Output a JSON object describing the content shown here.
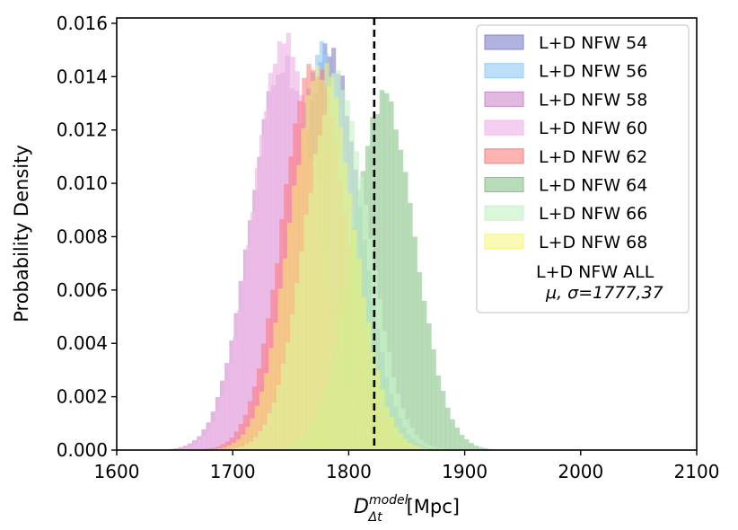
{
  "chart_data": {
    "type": "histogram",
    "title": "",
    "xlabel": {
      "main": "D",
      "sub": "Δt",
      "sup": "model",
      "unit": "[Mpc]"
    },
    "ylabel": "Probability Density",
    "xlim": [
      1600,
      2100
    ],
    "ylim": [
      0,
      0.0162
    ],
    "x_ticks": [
      "1600",
      "1700",
      "1800",
      "1900",
      "2000",
      "2100"
    ],
    "y_ticks": [
      "0.000",
      "0.002",
      "0.004",
      "0.006",
      "0.008",
      "0.010",
      "0.012",
      "0.014",
      "0.016"
    ],
    "reference_line": {
      "x": 1822,
      "style": "dashed",
      "color": "#000000"
    },
    "bins": 50,
    "legend_position": "top-right",
    "series": [
      {
        "name": "L+D NFW 54",
        "color": "#8888cc",
        "alpha": 0.65,
        "mean": 1783,
        "sigma": 27,
        "peak": 0.015,
        "range": [
          1690,
          1880
        ]
      },
      {
        "name": "L+D NFW 56",
        "color": "#99ccf5",
        "alpha": 0.65,
        "mean": 1776,
        "sigma": 27,
        "peak": 0.015,
        "range": [
          1685,
          1872
        ]
      },
      {
        "name": "L+D NFW 58",
        "color": "#cc88cc",
        "alpha": 0.6,
        "mean": 1743,
        "sigma": 28,
        "peak": 0.0145,
        "range": [
          1645,
          1845
        ]
      },
      {
        "name": "L+D NFW 60",
        "color": "#efbbe8",
        "alpha": 0.7,
        "mean": 1745,
        "sigma": 27,
        "peak": 0.0153,
        "range": [
          1650,
          1842
        ]
      },
      {
        "name": "L+D NFW 62",
        "color": "#ff7777",
        "alpha": 0.55,
        "mean": 1770,
        "sigma": 27,
        "peak": 0.0144,
        "range": [
          1670,
          1865
        ]
      },
      {
        "name": "L+D NFW 64",
        "color": "#88c488",
        "alpha": 0.6,
        "mean": 1830,
        "sigma": 27,
        "peak": 0.0132,
        "range": [
          1725,
          1928
        ]
      },
      {
        "name": "L+D NFW 66",
        "color": "#c8f3c8",
        "alpha": 0.65,
        "mean": 1790,
        "sigma": 27,
        "peak": 0.014,
        "range": [
          1690,
          1888
        ]
      },
      {
        "name": "L+D NFW 68",
        "color": "#f5f56e",
        "alpha": 0.5,
        "mean": 1777,
        "sigma": 27,
        "peak": 0.0143,
        "range": [
          1675,
          1875
        ]
      }
    ],
    "legend_extra": {
      "name": "L+D NFW ALL",
      "stats": "μ, σ=1777,37"
    }
  }
}
